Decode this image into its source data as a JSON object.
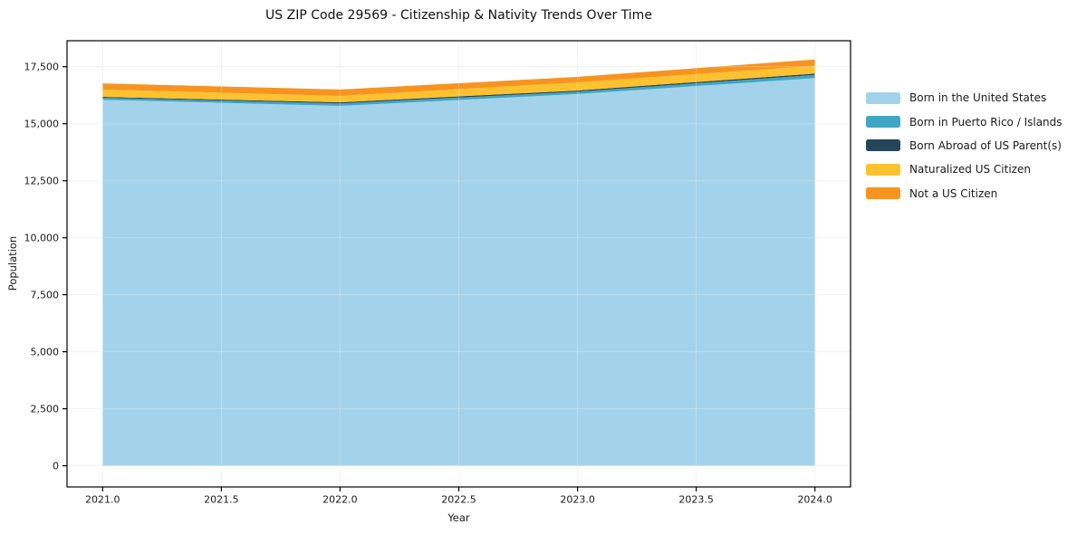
{
  "chart_data": {
    "type": "area",
    "stacked": true,
    "title": "US ZIP Code 29569 - Citizenship & Nativity Trends Over Time",
    "xlabel": "Year",
    "ylabel": "Population",
    "x": [
      2021,
      2022,
      2023,
      2024
    ],
    "series": [
      {
        "name": "Born in the United States",
        "color": "#a3d3ea",
        "values": [
          16050,
          15780,
          16300,
          17000
        ]
      },
      {
        "name": "Born in Puerto Rico / Islands",
        "color": "#41a6c4",
        "values": [
          90,
          110,
          105,
          140
        ]
      },
      {
        "name": "Born Abroad of US Parent(s)",
        "color": "#25465a",
        "values": [
          40,
          50,
          50,
          60
        ]
      },
      {
        "name": "Naturalized US Citizen",
        "color": "#fcc22f",
        "values": [
          320,
          280,
          360,
          340
        ]
      },
      {
        "name": "Not a US Citizen",
        "color": "#f79420",
        "values": [
          270,
          280,
          240,
          280
        ]
      }
    ],
    "xlim": [
      2020.85,
      2024.15
    ],
    "ylim": [
      -930,
      18640
    ],
    "xticks": {
      "values": [
        2021.0,
        2021.5,
        2022.0,
        2022.5,
        2023.0,
        2023.5,
        2024.0
      ],
      "labels": [
        "2021.0",
        "2021.5",
        "2022.0",
        "2022.5",
        "2023.0",
        "2023.5",
        "2024.0"
      ]
    },
    "yticks": {
      "values": [
        0,
        2500,
        5000,
        7500,
        10000,
        12500,
        15000,
        17500
      ],
      "labels": [
        "0",
        "2,500",
        "5,000",
        "7,500",
        "10,000",
        "12,500",
        "15,000",
        "17,500"
      ]
    },
    "grid": true,
    "legend_position": "center right",
    "colors": {
      "grid": "#e9edf0",
      "spine": "#000000",
      "background": "#ffffff"
    }
  }
}
